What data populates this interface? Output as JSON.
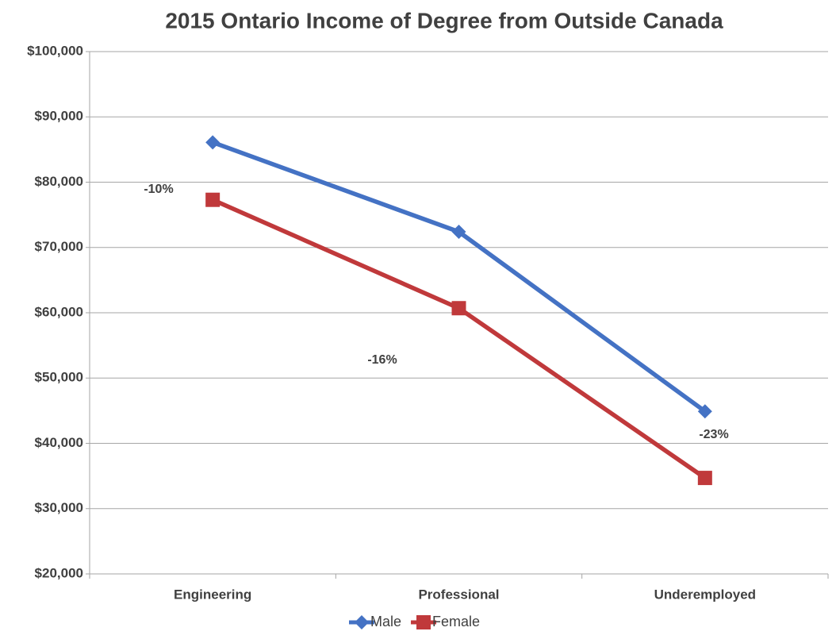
{
  "chart_data": {
    "type": "line",
    "title": "2015 Ontario Income of Degree from Outside Canada",
    "categories": [
      "Engineering",
      "Professional",
      "Underemployed"
    ],
    "series": [
      {
        "name": "Male",
        "color": "#4472c4",
        "marker": "diamond",
        "values": [
          86100,
          72400,
          44900
        ]
      },
      {
        "name": "Female",
        "color": "#c0393b",
        "marker": "square",
        "values": [
          77300,
          60700,
          34700
        ]
      }
    ],
    "annotations": [
      "-10%",
      "-16%",
      "-23%"
    ],
    "ylim": [
      20000,
      100000
    ],
    "yticks": [
      {
        "value": 20000,
        "label": "$20,000"
      },
      {
        "value": 30000,
        "label": "$30,000"
      },
      {
        "value": 40000,
        "label": "$40,000"
      },
      {
        "value": 50000,
        "label": "$50,000"
      },
      {
        "value": 60000,
        "label": "$60,000"
      },
      {
        "value": 70000,
        "label": "$70,000"
      },
      {
        "value": 80000,
        "label": "$80,000"
      },
      {
        "value": 90000,
        "label": "$90,000"
      },
      {
        "value": 100000,
        "label": "$100,000"
      }
    ],
    "grid": true,
    "legend": "bottom"
  }
}
